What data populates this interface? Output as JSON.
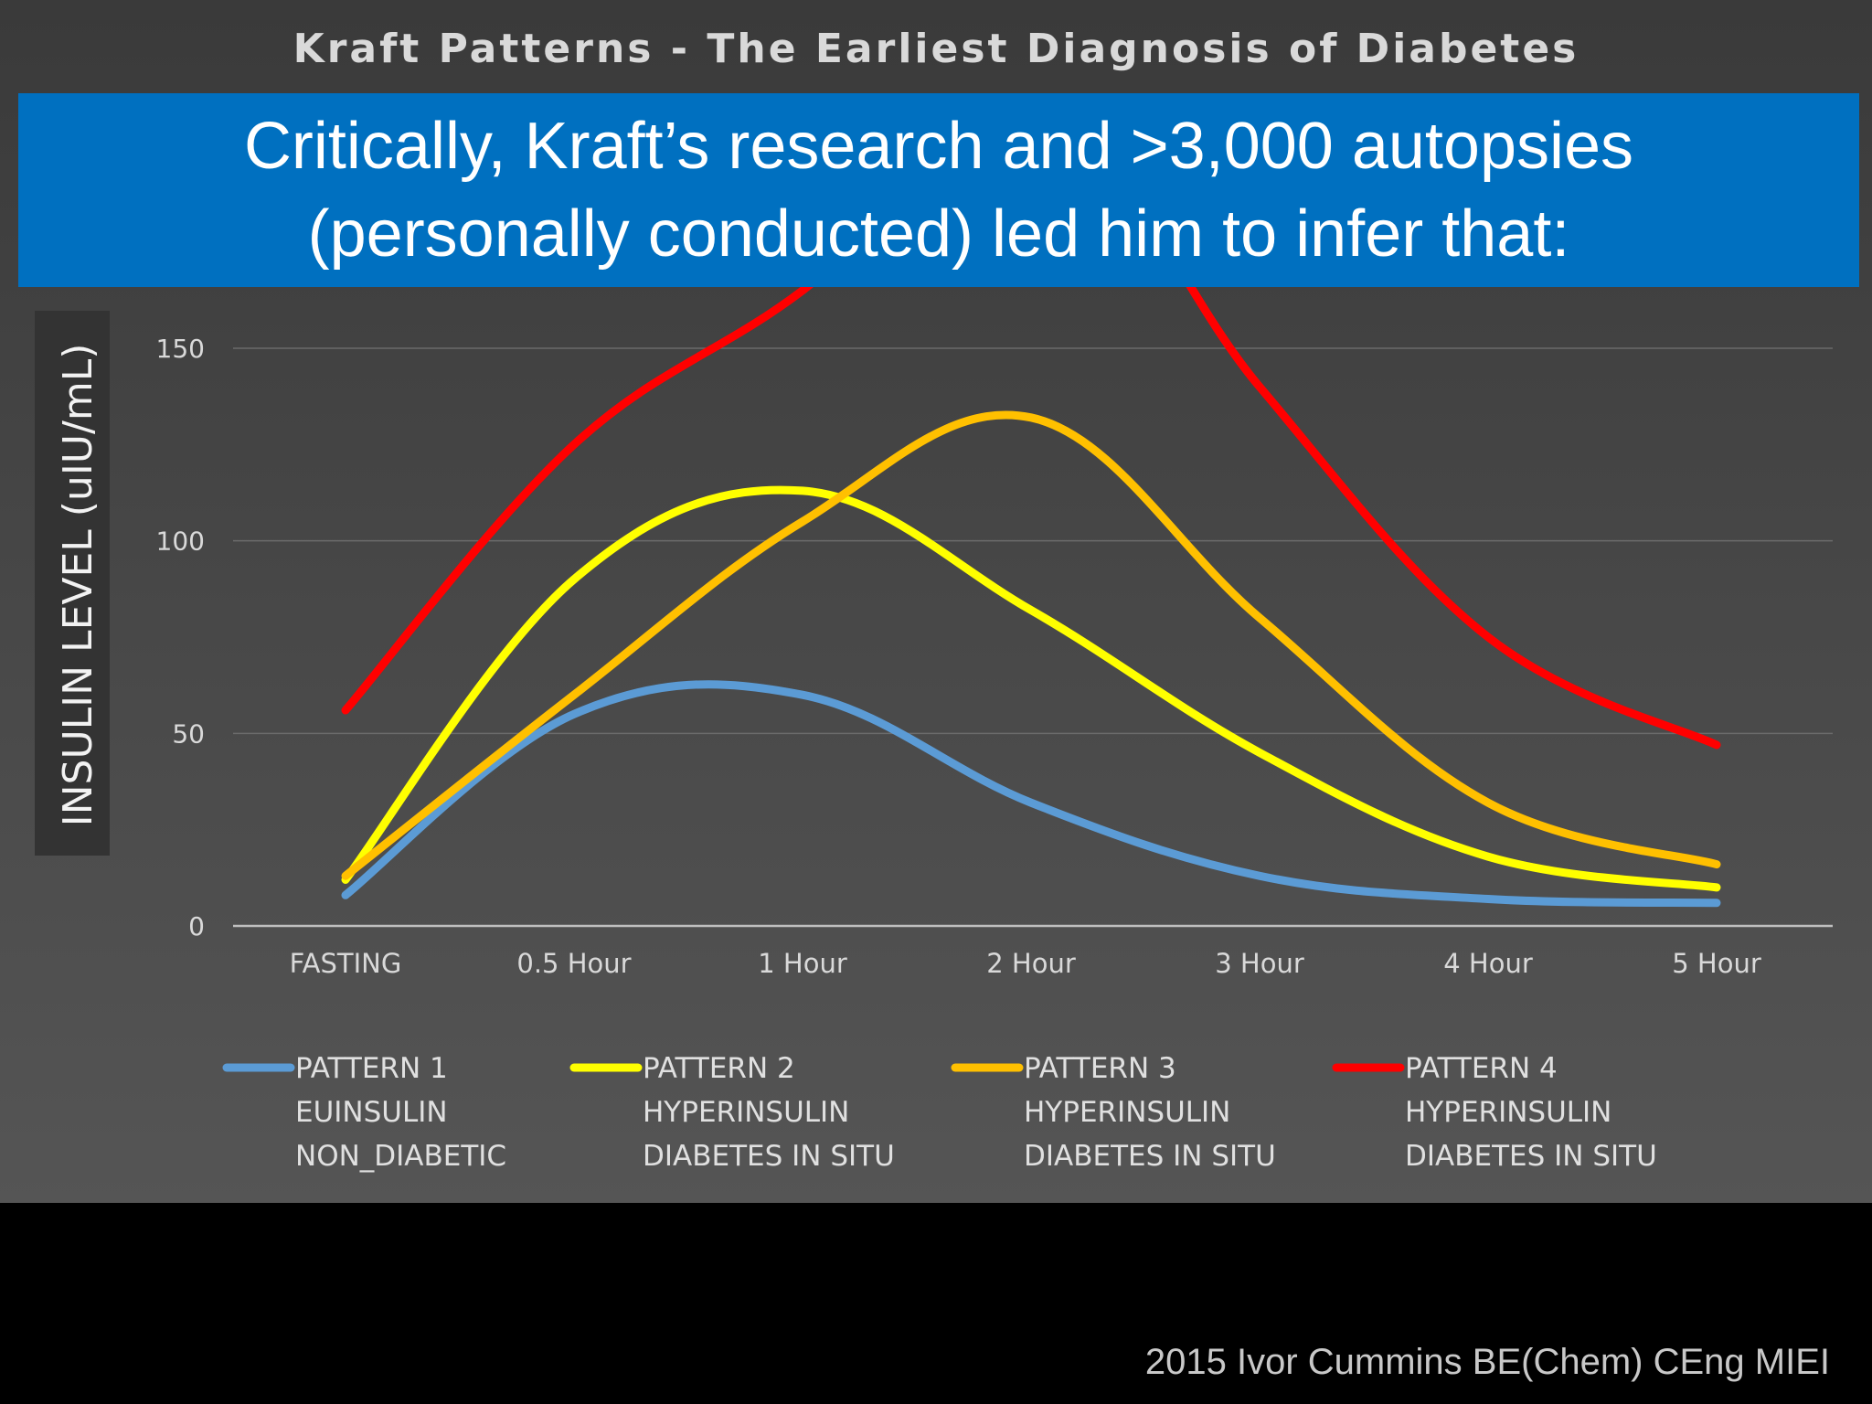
{
  "slide": {
    "chart_title": "Kraft Patterns - The Earliest Diagnosis of Diabetes",
    "banner": {
      "line1": "Critically, Kraft’s research and >3,000 autopsies",
      "line2": "(personally conducted) led him to infer that:"
    },
    "footer": "2015 Ivor Cummins BE(Chem) CEng MIEI",
    "colors": {
      "background_top": "#3a3a3a",
      "background_bottom": "#555555",
      "banner": "#0070c0",
      "pattern1": "#5b9bd5",
      "pattern2": "#ffff00",
      "pattern3": "#ffc000",
      "pattern4": "#ff0000"
    }
  },
  "chart_data": {
    "type": "line",
    "title": "Kraft Patterns - The Earliest Diagnosis of Diabetes",
    "ylabel": "INSULIN LEVEL (uIU/mL)",
    "xlabel": "",
    "categories": [
      "FASTING",
      "0.5 Hour",
      "1 Hour",
      "2 Hour",
      "3 Hour",
      "4 Hour",
      "5 Hour"
    ],
    "y_ticks": [
      "0",
      "50",
      "100",
      "150"
    ],
    "ylim": [
      0,
      150
    ],
    "grid": true,
    "legend_position": "bottom",
    "series": [
      {
        "name": "PATTERN 1",
        "line2": "EUINSULIN",
        "line3": "NON_DIABETIC",
        "color": "#5b9bd5",
        "values": [
          8,
          55,
          60,
          32,
          13,
          7,
          6
        ]
      },
      {
        "name": "PATTERN 2",
        "line2": "HYPERINSULIN",
        "line3": "DIABETES IN SITU",
        "color": "#ffff00",
        "values": [
          12,
          90,
          113,
          82,
          45,
          18,
          10
        ]
      },
      {
        "name": "PATTERN 3",
        "line2": "HYPERINSULIN",
        "line3": "DIABETES IN SITU",
        "color": "#ffc000",
        "values": [
          13,
          60,
          105,
          132,
          80,
          32,
          16
        ]
      },
      {
        "name": "PATTERN 4",
        "line2": "HYPERINSULIN",
        "line3": "DIABETES IN SITU",
        "color": "#ff0000",
        "values": [
          56,
          125,
          165,
          215,
          140,
          75,
          47
        ]
      }
    ]
  }
}
